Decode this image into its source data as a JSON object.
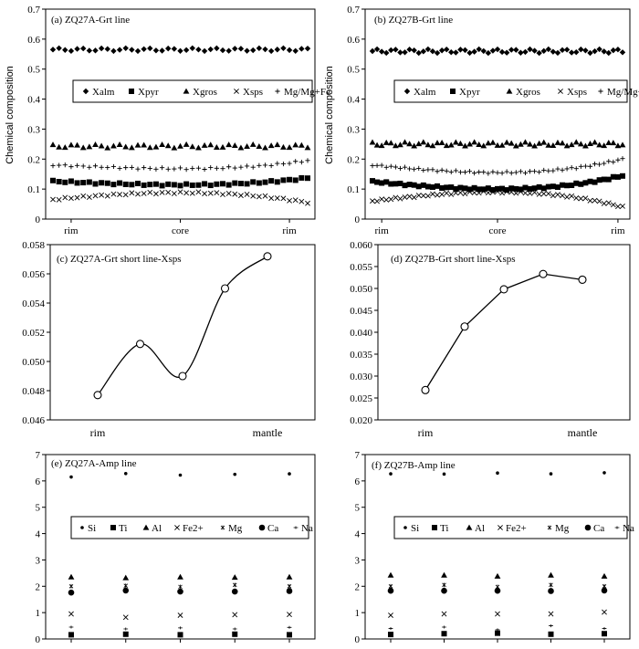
{
  "y_axis_label": "Chemical composition",
  "legends": {
    "grt": [
      "Xalm",
      "Xpyr",
      "Xgros",
      "Xsps",
      "Mg/Mg+Fe"
    ],
    "amp": [
      "Si",
      "Ti",
      "Al",
      "Fe2+",
      "Mg",
      "Ca",
      "Na"
    ]
  },
  "chart_data": [
    {
      "id": "a",
      "type": "scatter",
      "title": "(a)  ZQ27A-Grt line",
      "ylim": [
        0,
        0.7
      ],
      "yticks": [
        "0",
        "0.1",
        "0.2",
        "0.3",
        "0.4",
        "0.5",
        "0.6",
        "0.7"
      ],
      "xticks": [
        "rim",
        "core",
        "rim"
      ],
      "x_positions": [
        3,
        21,
        39
      ],
      "n": 43,
      "series": [
        {
          "name": "Xalm",
          "base": 0.565,
          "amp": 0.006,
          "shape": "diamond"
        },
        {
          "name": "Xpyr",
          "start": 0.126,
          "end": 0.137,
          "mid": 0.114,
          "shape": "square"
        },
        {
          "name": "Xgros",
          "base": 0.243,
          "amp": 0.007,
          "shape": "triangle"
        },
        {
          "name": "Xsps",
          "start": 0.065,
          "end": 0.055,
          "mid": 0.088,
          "shape": "x"
        },
        {
          "name": "Mg/Mg+Fe",
          "start": 0.18,
          "end": 0.195,
          "mid": 0.168,
          "shape": "plus"
        }
      ]
    },
    {
      "id": "b",
      "type": "scatter",
      "title": "(b)  ZQ27B-Grt line",
      "ylim": [
        0,
        0.7
      ],
      "yticks": [
        "0",
        "0.1",
        "0.2",
        "0.3",
        "0.4",
        "0.5",
        "0.6",
        "0.7"
      ],
      "xticks": [
        "rim",
        "core",
        "rim"
      ],
      "x_positions": [
        2,
        27,
        53
      ],
      "n": 55,
      "series": [
        {
          "name": "Xalm",
          "base": 0.56,
          "amp": 0.008,
          "shape": "diamond"
        },
        {
          "name": "Xpyr",
          "start": 0.125,
          "end": 0.145,
          "mid": 0.1,
          "shape": "square"
        },
        {
          "name": "Xgros",
          "base": 0.25,
          "amp": 0.008,
          "shape": "triangle"
        },
        {
          "name": "Xsps",
          "start": 0.06,
          "end": 0.04,
          "mid": 0.09,
          "shape": "x"
        },
        {
          "name": "Mg/Mg+Fe",
          "start": 0.18,
          "end": 0.2,
          "mid": 0.155,
          "shape": "plus"
        }
      ]
    },
    {
      "id": "c",
      "type": "line",
      "title": "(c)  ZQ27A-Grt short line-Xsps",
      "ylim": [
        0.046,
        0.058
      ],
      "yticks": [
        "0.046",
        "0.048",
        "0.050",
        "0.052",
        "0.054",
        "0.056",
        "0.058"
      ],
      "xticks": [
        "rim",
        "mantle"
      ],
      "x_positions": [
        1,
        5
      ],
      "x": [
        1,
        2,
        3,
        4,
        5
      ],
      "values": [
        0.0477,
        0.0512,
        0.049,
        0.055,
        0.0572
      ]
    },
    {
      "id": "d",
      "type": "line",
      "title": "(d)  ZQ27B-Grt short line-Xsps",
      "ylim": [
        0.02,
        0.06
      ],
      "yticks": [
        "0.020",
        "0.025",
        "0.030",
        "0.035",
        "0.040",
        "0.045",
        "0.050",
        "0.055",
        "0.060"
      ],
      "xticks": [
        "rim",
        "mantle"
      ],
      "x_positions": [
        1,
        5
      ],
      "x": [
        1,
        2,
        3,
        4,
        5
      ],
      "values": [
        0.0268,
        0.0413,
        0.0498,
        0.0533,
        0.052
      ]
    },
    {
      "id": "e",
      "type": "scatter",
      "title": "(e)  ZQ27A-Amp line",
      "ylim": [
        0,
        7
      ],
      "yticks": [
        "0",
        "1",
        "2",
        "3",
        "4",
        "5",
        "6",
        "7"
      ],
      "x": [
        1,
        2,
        3,
        4,
        5
      ],
      "series": [
        {
          "name": "Si",
          "values": [
            6.15,
            6.28,
            6.22,
            6.25,
            6.27
          ],
          "shape": "dot"
        },
        {
          "name": "Ti",
          "values": [
            0.16,
            0.18,
            0.16,
            0.18,
            0.16
          ],
          "shape": "square"
        },
        {
          "name": "Al",
          "values": [
            2.35,
            2.32,
            2.35,
            2.34,
            2.35
          ],
          "shape": "triangle"
        },
        {
          "name": "Fe2+",
          "values": [
            0.95,
            0.82,
            0.9,
            0.92,
            0.93
          ],
          "shape": "x"
        },
        {
          "name": "Mg",
          "values": [
            2.0,
            2.02,
            1.98,
            2.05,
            2.0
          ],
          "shape": "xs"
        },
        {
          "name": "Ca",
          "values": [
            1.76,
            1.84,
            1.8,
            1.8,
            1.82
          ],
          "shape": "circle"
        },
        {
          "name": "Na",
          "values": [
            0.45,
            0.38,
            0.42,
            0.38,
            0.44
          ],
          "shape": "dash"
        }
      ]
    },
    {
      "id": "f",
      "type": "scatter",
      "title": "(f)  ZQ27B-Amp line",
      "ylim": [
        0,
        7
      ],
      "yticks": [
        "0",
        "1",
        "2",
        "3",
        "4",
        "5",
        "6",
        "7"
      ],
      "x": [
        1,
        2,
        3,
        4,
        5
      ],
      "series": [
        {
          "name": "Si",
          "values": [
            6.27,
            6.26,
            6.3,
            6.27,
            6.31
          ],
          "shape": "dot"
        },
        {
          "name": "Ti",
          "values": [
            0.17,
            0.2,
            0.22,
            0.18,
            0.2
          ],
          "shape": "square"
        },
        {
          "name": "Al",
          "values": [
            2.42,
            2.42,
            2.38,
            2.42,
            2.38
          ],
          "shape": "triangle"
        },
        {
          "name": "Fe2+",
          "values": [
            0.9,
            0.95,
            0.95,
            0.95,
            1.02
          ],
          "shape": "x"
        },
        {
          "name": "Mg",
          "values": [
            2.0,
            2.05,
            1.98,
            2.05,
            2.0
          ],
          "shape": "xs"
        },
        {
          "name": "Ca",
          "values": [
            1.83,
            1.83,
            1.83,
            1.82,
            1.84
          ],
          "shape": "circle"
        },
        {
          "name": "Na",
          "values": [
            0.4,
            0.45,
            0.35,
            0.5,
            0.4
          ],
          "shape": "dash"
        }
      ]
    }
  ]
}
